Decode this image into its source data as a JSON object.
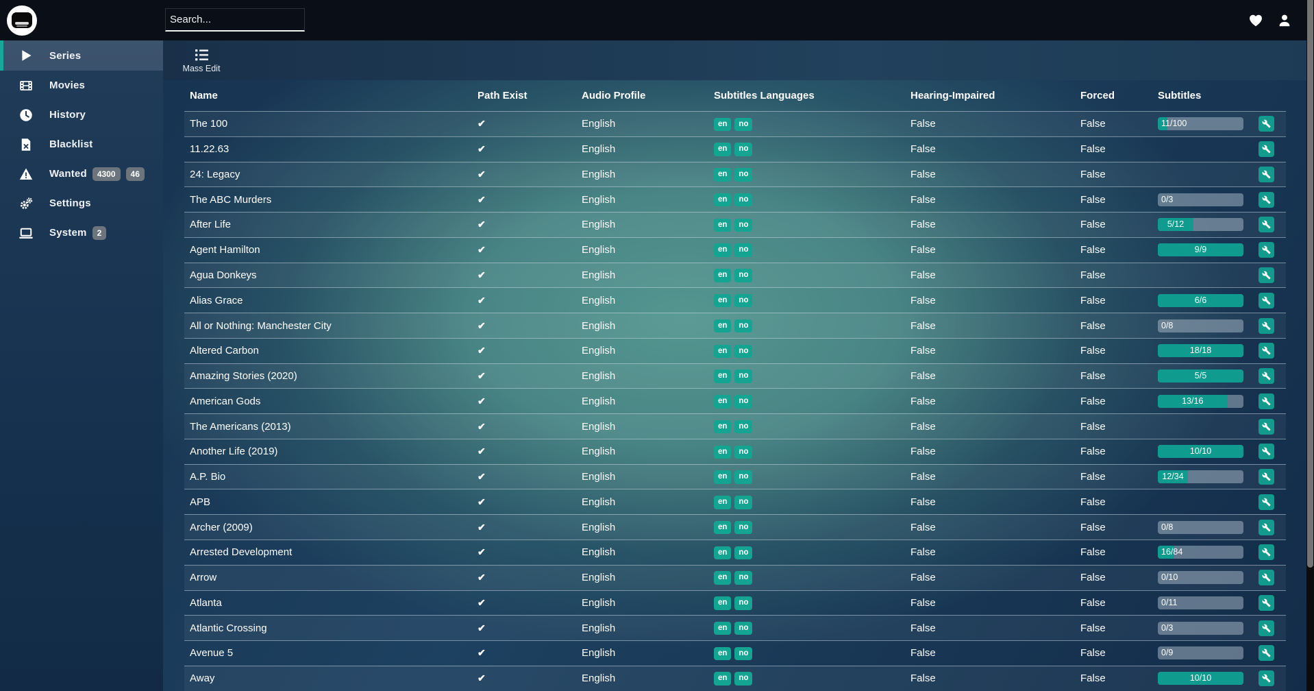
{
  "topbar": {
    "search_placeholder": "Search...",
    "icons": [
      "heart-icon",
      "user-icon"
    ],
    "logo": "bazarr-logo"
  },
  "sidebar": {
    "items": [
      {
        "label": "Series",
        "icon": "play-icon",
        "badges": [],
        "active": true
      },
      {
        "label": "Movies",
        "icon": "film-icon",
        "badges": [],
        "active": false
      },
      {
        "label": "History",
        "icon": "clock-icon",
        "badges": [],
        "active": false
      },
      {
        "label": "Blacklist",
        "icon": "file-x-icon",
        "badges": [],
        "active": false
      },
      {
        "label": "Wanted",
        "icon": "warning-icon",
        "badges": [
          "4300",
          "46"
        ],
        "active": false
      },
      {
        "label": "Settings",
        "icon": "gears-icon",
        "badges": [],
        "active": false
      },
      {
        "label": "System",
        "icon": "monitor-icon",
        "badges": [
          "2"
        ],
        "active": false
      }
    ]
  },
  "toolbar": {
    "mass_edit_label": "Mass Edit",
    "mass_edit_icon": "list-icon"
  },
  "icons": {
    "check": "✔",
    "wrench": "wrench-icon"
  },
  "colors": {
    "accent_teal": "#109b8f",
    "badge_gray": "#6c757d",
    "topbar_bg": "#0a0e17"
  },
  "table": {
    "columns": [
      "Name",
      "Path Exist",
      "Audio Profile",
      "Subtitles Languages",
      "Hearing-Impaired",
      "Forced",
      "Subtitles"
    ],
    "rows": [
      {
        "name": "The 100",
        "path_exist": true,
        "audio_profile": "English",
        "languages": [
          "en",
          "no"
        ],
        "hearing_impaired": "False",
        "forced": "False",
        "subtitles": {
          "have": 11,
          "total": 100
        }
      },
      {
        "name": "11.22.63",
        "path_exist": true,
        "audio_profile": "English",
        "languages": [
          "en",
          "no"
        ],
        "hearing_impaired": "False",
        "forced": "False",
        "subtitles": null
      },
      {
        "name": "24: Legacy",
        "path_exist": true,
        "audio_profile": "English",
        "languages": [
          "en",
          "no"
        ],
        "hearing_impaired": "False",
        "forced": "False",
        "subtitles": null
      },
      {
        "name": "The ABC Murders",
        "path_exist": true,
        "audio_profile": "English",
        "languages": [
          "en",
          "no"
        ],
        "hearing_impaired": "False",
        "forced": "False",
        "subtitles": {
          "have": 0,
          "total": 3
        }
      },
      {
        "name": "After Life",
        "path_exist": true,
        "audio_profile": "English",
        "languages": [
          "en",
          "no"
        ],
        "hearing_impaired": "False",
        "forced": "False",
        "subtitles": {
          "have": 5,
          "total": 12
        }
      },
      {
        "name": "Agent Hamilton",
        "path_exist": true,
        "audio_profile": "English",
        "languages": [
          "en",
          "no"
        ],
        "hearing_impaired": "False",
        "forced": "False",
        "subtitles": {
          "have": 9,
          "total": 9
        }
      },
      {
        "name": "Agua Donkeys",
        "path_exist": true,
        "audio_profile": "English",
        "languages": [
          "en",
          "no"
        ],
        "hearing_impaired": "False",
        "forced": "False",
        "subtitles": null
      },
      {
        "name": "Alias Grace",
        "path_exist": true,
        "audio_profile": "English",
        "languages": [
          "en",
          "no"
        ],
        "hearing_impaired": "False",
        "forced": "False",
        "subtitles": {
          "have": 6,
          "total": 6
        }
      },
      {
        "name": "All or Nothing: Manchester City",
        "path_exist": true,
        "audio_profile": "English",
        "languages": [
          "en",
          "no"
        ],
        "hearing_impaired": "False",
        "forced": "False",
        "subtitles": {
          "have": 0,
          "total": 8
        }
      },
      {
        "name": "Altered Carbon",
        "path_exist": true,
        "audio_profile": "English",
        "languages": [
          "en",
          "no"
        ],
        "hearing_impaired": "False",
        "forced": "False",
        "subtitles": {
          "have": 18,
          "total": 18
        }
      },
      {
        "name": "Amazing Stories (2020)",
        "path_exist": true,
        "audio_profile": "English",
        "languages": [
          "en",
          "no"
        ],
        "hearing_impaired": "False",
        "forced": "False",
        "subtitles": {
          "have": 5,
          "total": 5
        }
      },
      {
        "name": "American Gods",
        "path_exist": true,
        "audio_profile": "English",
        "languages": [
          "en",
          "no"
        ],
        "hearing_impaired": "False",
        "forced": "False",
        "subtitles": {
          "have": 13,
          "total": 16
        }
      },
      {
        "name": "The Americans (2013)",
        "path_exist": true,
        "audio_profile": "English",
        "languages": [
          "en",
          "no"
        ],
        "hearing_impaired": "False",
        "forced": "False",
        "subtitles": null
      },
      {
        "name": "Another Life (2019)",
        "path_exist": true,
        "audio_profile": "English",
        "languages": [
          "en",
          "no"
        ],
        "hearing_impaired": "False",
        "forced": "False",
        "subtitles": {
          "have": 10,
          "total": 10
        }
      },
      {
        "name": "A.P. Bio",
        "path_exist": true,
        "audio_profile": "English",
        "languages": [
          "en",
          "no"
        ],
        "hearing_impaired": "False",
        "forced": "False",
        "subtitles": {
          "have": 12,
          "total": 34
        }
      },
      {
        "name": "APB",
        "path_exist": true,
        "audio_profile": "English",
        "languages": [
          "en",
          "no"
        ],
        "hearing_impaired": "False",
        "forced": "False",
        "subtitles": null
      },
      {
        "name": "Archer (2009)",
        "path_exist": true,
        "audio_profile": "English",
        "languages": [
          "en",
          "no"
        ],
        "hearing_impaired": "False",
        "forced": "False",
        "subtitles": {
          "have": 0,
          "total": 8
        }
      },
      {
        "name": "Arrested Development",
        "path_exist": true,
        "audio_profile": "English",
        "languages": [
          "en",
          "no"
        ],
        "hearing_impaired": "False",
        "forced": "False",
        "subtitles": {
          "have": 16,
          "total": 84
        }
      },
      {
        "name": "Arrow",
        "path_exist": true,
        "audio_profile": "English",
        "languages": [
          "en",
          "no"
        ],
        "hearing_impaired": "False",
        "forced": "False",
        "subtitles": {
          "have": 0,
          "total": 10
        }
      },
      {
        "name": "Atlanta",
        "path_exist": true,
        "audio_profile": "English",
        "languages": [
          "en",
          "no"
        ],
        "hearing_impaired": "False",
        "forced": "False",
        "subtitles": {
          "have": 0,
          "total": 11
        }
      },
      {
        "name": "Atlantic Crossing",
        "path_exist": true,
        "audio_profile": "English",
        "languages": [
          "en",
          "no"
        ],
        "hearing_impaired": "False",
        "forced": "False",
        "subtitles": {
          "have": 0,
          "total": 3
        }
      },
      {
        "name": "Avenue 5",
        "path_exist": true,
        "audio_profile": "English",
        "languages": [
          "en",
          "no"
        ],
        "hearing_impaired": "False",
        "forced": "False",
        "subtitles": {
          "have": 0,
          "total": 9
        }
      },
      {
        "name": "Away",
        "path_exist": true,
        "audio_profile": "English",
        "languages": [
          "en",
          "no"
        ],
        "hearing_impaired": "False",
        "forced": "False",
        "subtitles": {
          "have": 10,
          "total": 10
        }
      }
    ]
  }
}
